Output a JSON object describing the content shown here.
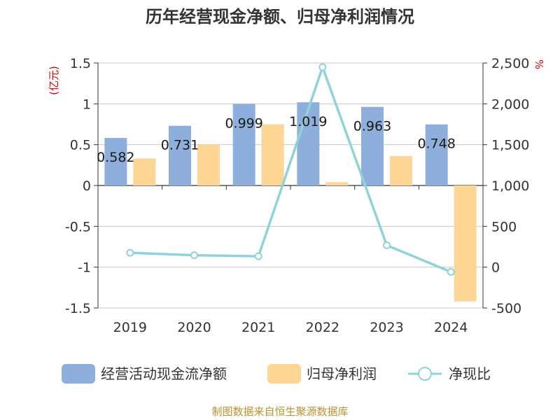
{
  "chart_data": {
    "type": "bar",
    "title": "历年经营现金净额、归母净利润情况",
    "y_unit_left": "(亿元)",
    "y_unit_right": "%",
    "categories": [
      "2019",
      "2020",
      "2021",
      "2022",
      "2023",
      "2024"
    ],
    "ylim_left": [
      -1.5,
      1.5
    ],
    "yticks_left": [
      "1.5",
      "1",
      "0.5",
      "0",
      "-0.5",
      "-1",
      "-1.5"
    ],
    "ylim_right": [
      -500,
      2500
    ],
    "yticks_right": [
      "2,500",
      "2,000",
      "1,500",
      "1,000",
      "500",
      "0",
      "-500"
    ],
    "grid": true,
    "legend_position": "bottom",
    "series": [
      {
        "name": "经营活动现金流净额",
        "kind": "bar",
        "axis": "left",
        "color": "#8eaedb",
        "values": [
          0.582,
          0.731,
          0.999,
          1.019,
          0.963,
          0.748
        ],
        "labels": [
          "0.582",
          "0.731",
          "0.999",
          "1.019",
          "0.963",
          "0.748"
        ]
      },
      {
        "name": "归母净利润",
        "kind": "bar",
        "axis": "left",
        "color": "#fdd594",
        "values": [
          0.33,
          0.5,
          0.75,
          0.04,
          0.36,
          -1.42
        ]
      },
      {
        "name": "净现比",
        "kind": "line",
        "axis": "right",
        "color": "#8fd3d8",
        "values": [
          176,
          146,
          133,
          2449,
          268,
          -58
        ]
      }
    ],
    "source": "制图数据来自恒生聚源数据库"
  }
}
